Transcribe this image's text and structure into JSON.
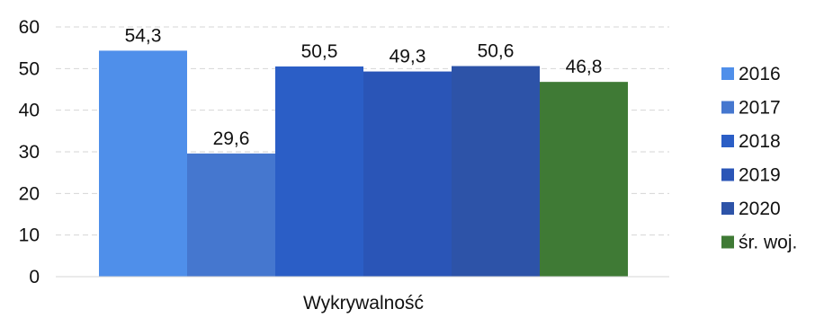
{
  "chart_data": {
    "type": "bar",
    "categories": [
      "Wykrywalność"
    ],
    "series": [
      {
        "name": "2016",
        "values": [
          54.3
        ],
        "label": "54,3",
        "color": "#4f8fea"
      },
      {
        "name": "2017",
        "values": [
          29.6
        ],
        "label": "29,6",
        "color": "#4577cf"
      },
      {
        "name": "2018",
        "values": [
          50.5
        ],
        "label": "50,5",
        "color": "#2b5ec6"
      },
      {
        "name": "2019",
        "values": [
          49.3
        ],
        "label": "49,3",
        "color": "#2a55b7"
      },
      {
        "name": "2020",
        "values": [
          50.6
        ],
        "label": "50,6",
        "color": "#2d53a8"
      },
      {
        "name": "śr. woj.",
        "values": [
          46.8
        ],
        "label": "46,8",
        "color": "#3f7a35"
      }
    ],
    "ylim": [
      0,
      60
    ],
    "yticks": [
      "0",
      "10",
      "20",
      "30",
      "40",
      "50",
      "60"
    ],
    "grid": true,
    "legend": "right"
  }
}
